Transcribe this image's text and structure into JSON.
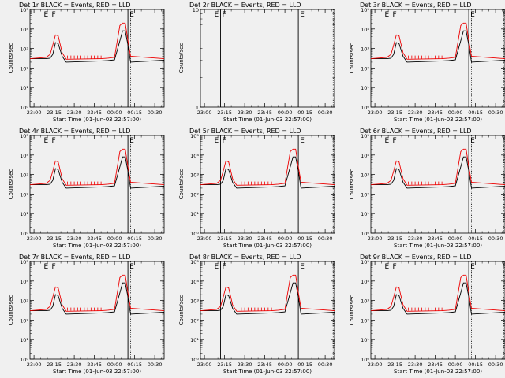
{
  "colors": {
    "events": "#000000",
    "lld": "#ee0000",
    "background": "#f0f0f0"
  },
  "chart_data": {
    "type": "line",
    "grid": "3x3 panels",
    "yscale": "log",
    "xlabel": "Start Time (01-Jun-03 22:57:00)",
    "ylabel": "Counts/sec",
    "xticks": [
      "23:00",
      "23:15",
      "23:30",
      "23:45",
      "00:00",
      "00:15",
      "00:30"
    ],
    "xlim": [
      "22:57",
      "00:37"
    ],
    "marker_lines": {
      "solid": [
        "23:12",
        "00:10"
      ],
      "dotted": [
        "00:12",
        "00:36"
      ]
    },
    "marker_letters": [
      "E",
      "F",
      "E"
    ],
    "series_names": [
      "Events",
      "LLD"
    ],
    "panels": [
      {
        "title": "Det 1r BLACK = Events, RED = LLD",
        "yticks": [
          "10⁰",
          "10¹",
          "10²",
          "10³",
          "10⁴",
          "10⁵"
        ],
        "ylim": [
          1,
          100000
        ],
        "has_data": true,
        "series": [
          {
            "name": "Events",
            "x": [
              "22:57",
              "23:09",
              "23:12",
              "23:14",
              "23:16",
              "23:18",
              "23:21",
              "23:24",
              "23:50",
              "23:55",
              "00:00",
              "00:04",
              "00:06",
              "00:08",
              "00:10",
              "00:12",
              "00:37"
            ],
            "y": [
              300,
              300,
              320,
              500,
              2000,
              1800,
              400,
              200,
              230,
              240,
              260,
              2500,
              8000,
              8000,
              1500,
              200,
              250
            ]
          },
          {
            "name": "LLD",
            "x": [
              "22:57",
              "23:09",
              "23:12",
              "23:14",
              "23:16",
              "23:18",
              "23:21",
              "23:24",
              "23:50",
              "23:55",
              "00:00",
              "00:04",
              "00:06",
              "00:08",
              "00:10",
              "00:12",
              "00:37"
            ],
            "y": [
              300,
              350,
              500,
              1500,
              5000,
              4500,
              600,
              280,
              300,
              320,
              350,
              15000,
              20000,
              20000,
              2500,
              400,
              300
            ]
          }
        ]
      },
      {
        "title": "Det 2r BLACK = Events, RED = LLD",
        "yticks": [
          "1",
          "10"
        ],
        "ylim": [
          1,
          10
        ],
        "has_data": false,
        "series": []
      },
      {
        "title": "Det 3r BLACK = Events, RED = LLD",
        "yticks": [
          "10⁰",
          "10¹",
          "10²",
          "10³",
          "10⁴",
          "10⁵"
        ],
        "ylim": [
          1,
          100000
        ],
        "has_data": true,
        "series": [
          {
            "name": "Events",
            "x": [
              "22:57",
              "23:09",
              "23:12",
              "23:14",
              "23:16",
              "23:18",
              "23:21",
              "23:24",
              "23:50",
              "23:55",
              "00:00",
              "00:04",
              "00:06",
              "00:08",
              "00:10",
              "00:12",
              "00:37"
            ],
            "y": [
              300,
              300,
              320,
              500,
              2000,
              1800,
              400,
              200,
              230,
              240,
              260,
              2500,
              8000,
              8000,
              1500,
              200,
              250
            ]
          },
          {
            "name": "LLD",
            "x": [
              "22:57",
              "23:09",
              "23:12",
              "23:14",
              "23:16",
              "23:18",
              "23:21",
              "23:24",
              "23:50",
              "23:55",
              "00:00",
              "00:04",
              "00:06",
              "00:08",
              "00:10",
              "00:12",
              "00:37"
            ],
            "y": [
              300,
              350,
              500,
              1500,
              5000,
              4500,
              600,
              280,
              300,
              320,
              350,
              15000,
              20000,
              20000,
              2500,
              400,
              300
            ]
          }
        ]
      },
      {
        "title": "Det 4r BLACK = Events, RED = LLD",
        "yticks": [
          "10⁰",
          "10¹",
          "10²",
          "10³",
          "10⁴",
          "10⁵"
        ],
        "ylim": [
          1,
          100000
        ],
        "has_data": true,
        "series": [
          {
            "name": "Events",
            "x": [
              "22:57",
              "23:09",
              "23:12",
              "23:14",
              "23:16",
              "23:18",
              "23:21",
              "23:24",
              "23:50",
              "23:55",
              "00:00",
              "00:04",
              "00:06",
              "00:08",
              "00:10",
              "00:12",
              "00:37"
            ],
            "y": [
              300,
              300,
              320,
              500,
              2000,
              1800,
              400,
              200,
              230,
              240,
              260,
              2500,
              8000,
              8000,
              1500,
              200,
              250
            ]
          },
          {
            "name": "LLD",
            "x": [
              "22:57",
              "23:09",
              "23:12",
              "23:14",
              "23:16",
              "23:18",
              "23:21",
              "23:24",
              "23:50",
              "23:55",
              "00:00",
              "00:04",
              "00:06",
              "00:08",
              "00:10",
              "00:12",
              "00:37"
            ],
            "y": [
              300,
              350,
              500,
              1500,
              5000,
              4500,
              600,
              280,
              300,
              320,
              350,
              15000,
              20000,
              20000,
              2500,
              400,
              300
            ]
          }
        ]
      },
      {
        "title": "Det 5r BLACK = Events, RED = LLD",
        "yticks": [
          "10⁰",
          "10¹",
          "10²",
          "10³",
          "10⁴",
          "10⁵"
        ],
        "ylim": [
          1,
          100000
        ],
        "has_data": true,
        "series": [
          {
            "name": "Events",
            "x": [
              "22:57",
              "23:09",
              "23:12",
              "23:14",
              "23:16",
              "23:18",
              "23:21",
              "23:24",
              "23:50",
              "23:55",
              "00:00",
              "00:04",
              "00:06",
              "00:08",
              "00:10",
              "00:12",
              "00:37"
            ],
            "y": [
              300,
              300,
              320,
              500,
              2000,
              1800,
              400,
              200,
              230,
              240,
              260,
              2500,
              8000,
              8000,
              1500,
              200,
              250
            ]
          },
          {
            "name": "LLD",
            "x": [
              "22:57",
              "23:09",
              "23:12",
              "23:14",
              "23:16",
              "23:18",
              "23:21",
              "23:24",
              "23:50",
              "23:55",
              "00:00",
              "00:04",
              "00:06",
              "00:08",
              "00:10",
              "00:12",
              "00:37"
            ],
            "y": [
              300,
              350,
              500,
              1500,
              5000,
              4500,
              600,
              280,
              300,
              320,
              350,
              15000,
              20000,
              20000,
              2500,
              400,
              300
            ]
          }
        ]
      },
      {
        "title": "Det 6r BLACK = Events, RED = LLD",
        "yticks": [
          "10⁰",
          "10¹",
          "10²",
          "10³",
          "10⁴",
          "10⁵"
        ],
        "ylim": [
          1,
          100000
        ],
        "has_data": true,
        "series": [
          {
            "name": "Events",
            "x": [
              "22:57",
              "23:09",
              "23:12",
              "23:14",
              "23:16",
              "23:18",
              "23:21",
              "23:24",
              "23:50",
              "23:55",
              "00:00",
              "00:04",
              "00:06",
              "00:08",
              "00:10",
              "00:12",
              "00:37"
            ],
            "y": [
              300,
              300,
              320,
              500,
              2000,
              1800,
              400,
              200,
              230,
              240,
              260,
              2500,
              8000,
              8000,
              1500,
              200,
              250
            ]
          },
          {
            "name": "LLD",
            "x": [
              "22:57",
              "23:09",
              "23:12",
              "23:14",
              "23:16",
              "23:18",
              "23:21",
              "23:24",
              "23:50",
              "23:55",
              "00:00",
              "00:04",
              "00:06",
              "00:08",
              "00:10",
              "00:12",
              "00:37"
            ],
            "y": [
              300,
              350,
              500,
              1500,
              5000,
              4500,
              600,
              280,
              300,
              320,
              350,
              15000,
              20000,
              20000,
              2500,
              400,
              300
            ]
          }
        ]
      },
      {
        "title": "Det 7r BLACK = Events, RED = LLD",
        "yticks": [
          "10⁰",
          "10¹",
          "10²",
          "10³",
          "10⁴",
          "10⁵"
        ],
        "ylim": [
          1,
          100000
        ],
        "has_data": true,
        "series": [
          {
            "name": "Events",
            "x": [
              "22:57",
              "23:09",
              "23:12",
              "23:14",
              "23:16",
              "23:18",
              "23:21",
              "23:24",
              "23:50",
              "23:55",
              "00:00",
              "00:04",
              "00:06",
              "00:08",
              "00:10",
              "00:12",
              "00:37"
            ],
            "y": [
              300,
              300,
              320,
              500,
              2000,
              1800,
              400,
              200,
              230,
              240,
              260,
              2500,
              8000,
              8000,
              1500,
              200,
              250
            ]
          },
          {
            "name": "LLD",
            "x": [
              "22:57",
              "23:09",
              "23:12",
              "23:14",
              "23:16",
              "23:18",
              "23:21",
              "23:24",
              "23:50",
              "23:55",
              "00:00",
              "00:04",
              "00:06",
              "00:08",
              "00:10",
              "00:12",
              "00:37"
            ],
            "y": [
              300,
              350,
              500,
              1500,
              5000,
              4500,
              600,
              280,
              300,
              320,
              350,
              15000,
              20000,
              20000,
              2500,
              400,
              300
            ]
          }
        ]
      },
      {
        "title": "Det 8r BLACK = Events, RED = LLD",
        "yticks": [
          "10⁰",
          "10¹",
          "10²",
          "10³",
          "10⁴",
          "10⁵"
        ],
        "ylim": [
          1,
          100000
        ],
        "has_data": true,
        "series": [
          {
            "name": "Events",
            "x": [
              "22:57",
              "23:09",
              "23:12",
              "23:14",
              "23:16",
              "23:18",
              "23:21",
              "23:24",
              "23:50",
              "23:55",
              "00:00",
              "00:04",
              "00:06",
              "00:08",
              "00:10",
              "00:12",
              "00:37"
            ],
            "y": [
              300,
              300,
              320,
              500,
              2000,
              1800,
              400,
              200,
              230,
              240,
              260,
              2500,
              8000,
              8000,
              1500,
              200,
              250
            ]
          },
          {
            "name": "LLD",
            "x": [
              "22:57",
              "23:09",
              "23:12",
              "23:14",
              "23:16",
              "23:18",
              "23:21",
              "23:24",
              "23:50",
              "23:55",
              "00:00",
              "00:04",
              "00:06",
              "00:08",
              "00:10",
              "00:12",
              "00:37"
            ],
            "y": [
              300,
              350,
              500,
              1500,
              5000,
              4500,
              600,
              280,
              300,
              320,
              350,
              15000,
              20000,
              20000,
              2500,
              400,
              300
            ]
          }
        ]
      },
      {
        "title": "Det 9r BLACK = Events, RED = LLD",
        "yticks": [
          "10⁰",
          "10¹",
          "10²",
          "10³",
          "10⁴",
          "10⁵"
        ],
        "ylim": [
          1,
          100000
        ],
        "has_data": true,
        "series": [
          {
            "name": "Events",
            "x": [
              "22:57",
              "23:09",
              "23:12",
              "23:14",
              "23:16",
              "23:18",
              "23:21",
              "23:24",
              "23:50",
              "23:55",
              "00:00",
              "00:04",
              "00:06",
              "00:08",
              "00:10",
              "00:12",
              "00:37"
            ],
            "y": [
              300,
              300,
              320,
              500,
              2000,
              1800,
              400,
              200,
              230,
              240,
              260,
              2500,
              8000,
              8000,
              1500,
              200,
              250
            ]
          },
          {
            "name": "LLD",
            "x": [
              "22:57",
              "23:09",
              "23:12",
              "23:14",
              "23:16",
              "23:18",
              "23:21",
              "23:24",
              "23:50",
              "23:55",
              "00:00",
              "00:04",
              "00:06",
              "00:08",
              "00:10",
              "00:12",
              "00:37"
            ],
            "y": [
              300,
              350,
              500,
              1500,
              5000,
              4500,
              600,
              280,
              300,
              320,
              350,
              15000,
              20000,
              20000,
              2500,
              400,
              300
            ]
          }
        ]
      }
    ]
  }
}
